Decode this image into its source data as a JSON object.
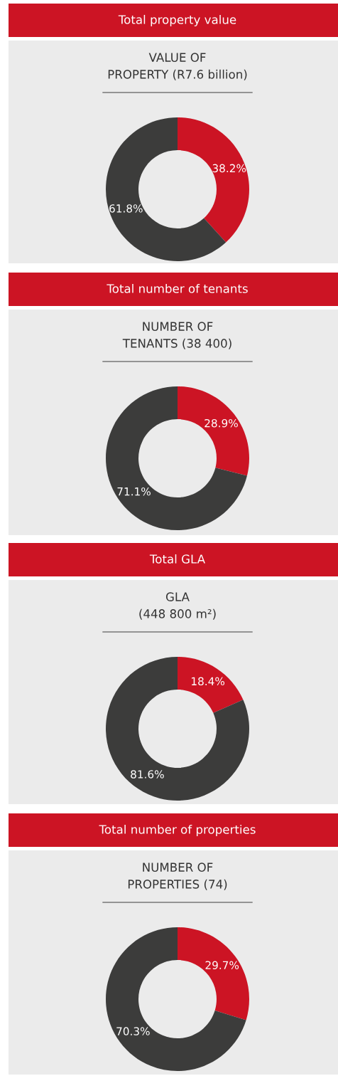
{
  "chart_data": [
    {
      "type": "donut",
      "title": "Total property value",
      "subtitle": "VALUE OF\nPROPERTY (R7.6 billion)",
      "categories": [
        null,
        null
      ],
      "values": [
        38.2,
        61.8
      ],
      "colors": [
        "#cc1424",
        "#3c3c3b"
      ],
      "value_labels": [
        "38.2%",
        "61.8%"
      ]
    },
    {
      "type": "donut",
      "title": "Total number of tenants",
      "subtitle": "NUMBER OF\nTENANTS (38 400)",
      "categories": [
        null,
        null
      ],
      "values": [
        28.9,
        71.1
      ],
      "colors": [
        "#cc1424",
        "#3c3c3b"
      ],
      "value_labels": [
        "28.9%",
        "71.1%"
      ]
    },
    {
      "type": "donut",
      "title": "Total GLA",
      "subtitle": "GLA\n(448 800 m²)",
      "categories": [
        null,
        null
      ],
      "values": [
        18.4,
        81.6
      ],
      "colors": [
        "#cc1424",
        "#3c3c3b"
      ],
      "value_labels": [
        "18.4%",
        "81.6%"
      ]
    },
    {
      "type": "donut",
      "title": "Total number of properties",
      "subtitle": "NUMBER OF\nPROPERTIES (74)",
      "categories": [
        null,
        null
      ],
      "values": [
        29.7,
        70.3
      ],
      "colors": [
        "#cc1424",
        "#3c3c3b"
      ],
      "value_labels": [
        "29.7%",
        "70.3%"
      ]
    }
  ]
}
